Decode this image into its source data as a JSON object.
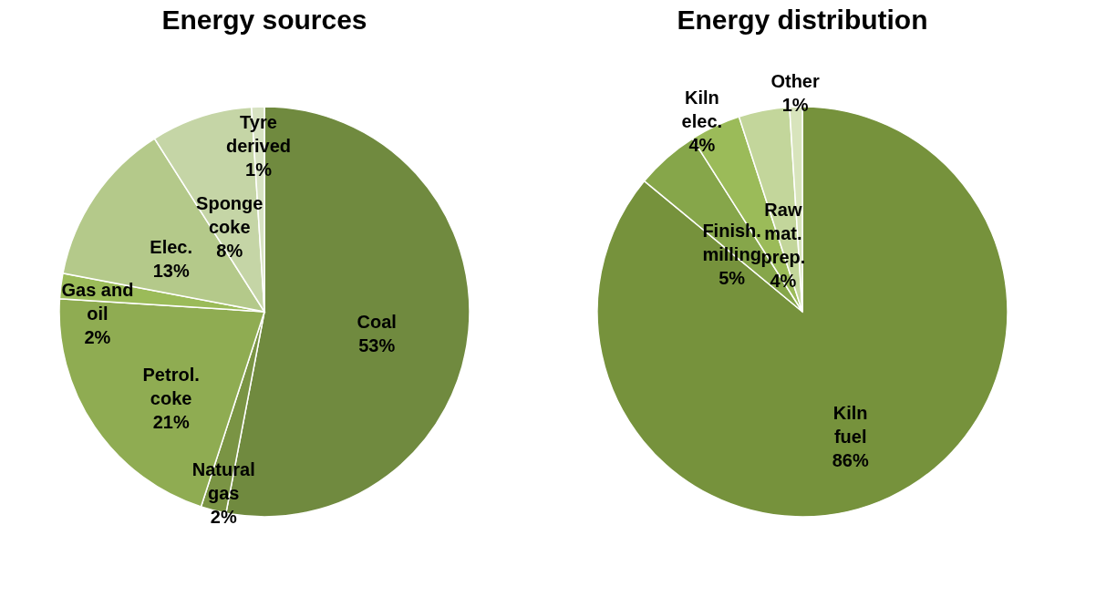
{
  "chart_data": [
    {
      "type": "pie",
      "title": "Energy sources",
      "categories": [
        "Coal",
        "Natural gas",
        "Petrol. coke",
        "Gas and oil",
        "Elec.",
        "Sponge coke",
        "Tyre derived"
      ],
      "values": [
        53,
        2,
        21,
        2,
        13,
        8,
        1
      ],
      "value_labels": [
        "53%",
        "2%",
        "21%",
        "2%",
        "13%",
        "8%",
        "1%"
      ],
      "colors": [
        "#708a3f",
        "#7a9444",
        "#8fac52",
        "#9bbb59",
        "#b4c98a",
        "#c5d5a6",
        "#d7e2c2"
      ]
    },
    {
      "type": "pie",
      "title": "Energy distribution",
      "categories": [
        "Kiln fuel",
        "Finish. milling",
        "Kiln elec.",
        "Raw mat. prep.",
        "Other"
      ],
      "values": [
        86,
        5,
        4,
        4,
        1
      ],
      "value_labels": [
        "86%",
        "5%",
        "4%",
        "4%",
        "1%"
      ],
      "colors": [
        "#76923c",
        "#86a64a",
        "#9bbb59",
        "#c3d69b",
        "#d8e4bc"
      ]
    }
  ]
}
